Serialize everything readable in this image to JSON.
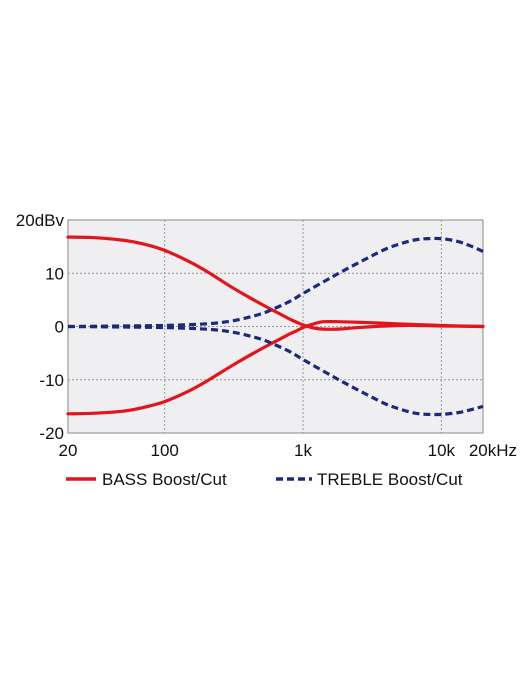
{
  "chart_data": {
    "type": "line",
    "x_scale": "log",
    "xlim": [
      20,
      20000
    ],
    "ylim": [
      -20,
      20
    ],
    "grid": true,
    "legend_position": "bottom",
    "x_tick_labels": [
      {
        "value": 20,
        "label": "20"
      },
      {
        "value": 100,
        "label": "100"
      },
      {
        "value": 1000,
        "label": "1k"
      },
      {
        "value": 10000,
        "label": "10k"
      },
      {
        "value": 20000,
        "label": "20kHz"
      }
    ],
    "y_tick_labels": [
      {
        "value": 20,
        "label": "20dBv"
      },
      {
        "value": 10,
        "label": "10"
      },
      {
        "value": 0,
        "label": "0"
      },
      {
        "value": -10,
        "label": "-10"
      },
      {
        "value": -20,
        "label": "-20"
      }
    ],
    "x_grid": [
      100,
      1000,
      10000
    ],
    "y_grid": [
      10,
      0,
      -10
    ],
    "colors": {
      "bass": "#e3141b",
      "treble": "#1b2a7d",
      "plot_bg": "#efeef0",
      "grid": "#9a9a9a"
    },
    "series": [
      {
        "name": "BASS Boost/Cut",
        "style": "solid",
        "color": "#e3141b",
        "curves": [
          {
            "x": [
              20,
              30,
              50,
              70,
              100,
              150,
              200,
              300,
              400,
              500,
              600,
              700,
              800,
              900,
              1000,
              1200,
              1400,
              1800,
              2500,
              4000,
              6000,
              10000,
              20000
            ],
            "y": [
              16.8,
              16.7,
              16.2,
              15.5,
              14.3,
              12.2,
              10.4,
              7.5,
              5.6,
              4.2,
              3.1,
              2.2,
              1.4,
              0.8,
              0.3,
              -0.3,
              -0.5,
              -0.5,
              -0.2,
              0.1,
              0.2,
              0.1,
              0
            ]
          },
          {
            "x": [
              20,
              30,
              50,
              70,
              100,
              150,
              200,
              300,
              400,
              500,
              600,
              700,
              800,
              900,
              1000,
              1200,
              1400,
              1800,
              2500,
              4000,
              6000,
              10000,
              20000
            ],
            "y": [
              -16.4,
              -16.3,
              -15.9,
              -15.2,
              -14.1,
              -12.1,
              -10.3,
              -7.5,
              -5.6,
              -4.2,
              -3.1,
              -2.2,
              -1.4,
              -0.8,
              -0.2,
              0.5,
              0.9,
              0.9,
              0.8,
              0.6,
              0.4,
              0.2,
              0
            ]
          }
        ]
      },
      {
        "name": "TREBLE Boost/Cut",
        "style": "dashed",
        "color": "#1b2a7d",
        "curves": [
          {
            "x": [
              20,
              50,
              100,
              200,
              300,
              400,
              500,
              600,
              800,
              1000,
              1500,
              2000,
              3000,
              4000,
              5000,
              6000,
              7000,
              8000,
              10000,
              13000,
              16000,
              20000
            ],
            "y": [
              0,
              0.1,
              0.2,
              0.5,
              1.0,
              1.7,
              2.4,
              3.2,
              4.7,
              6.2,
              8.8,
              10.6,
              13.0,
              14.6,
              15.5,
              16.1,
              16.4,
              16.5,
              16.5,
              16.0,
              15.2,
              14.1
            ]
          },
          {
            "x": [
              20,
              50,
              100,
              200,
              300,
              400,
              500,
              600,
              800,
              1000,
              1500,
              2000,
              3000,
              4000,
              5000,
              6000,
              7000,
              8000,
              10000,
              13000,
              16000,
              20000
            ],
            "y": [
              0,
              -0.1,
              -0.2,
              -0.5,
              -1.0,
              -1.7,
              -2.4,
              -3.2,
              -4.7,
              -6.2,
              -8.8,
              -10.6,
              -13.0,
              -14.6,
              -15.5,
              -16.1,
              -16.4,
              -16.5,
              -16.5,
              -16.2,
              -15.7,
              -15.0
            ]
          }
        ]
      }
    ]
  }
}
